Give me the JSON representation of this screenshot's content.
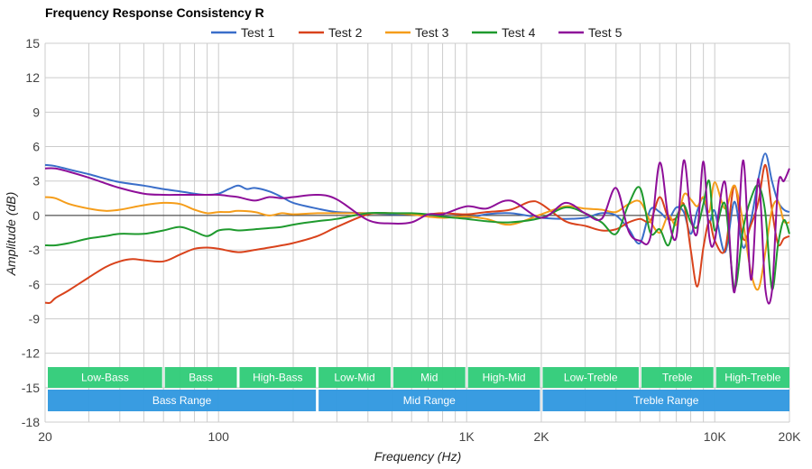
{
  "chart_data": {
    "type": "line",
    "title": "Frequency Response Consistency R",
    "xlabel": "Frequency (Hz)",
    "ylabel": "Amplitude (dB)",
    "xscale": "log",
    "xlim": [
      20,
      20000
    ],
    "ylim": [
      -18,
      15
    ],
    "grid": true,
    "legend_position": "top-center",
    "x_ticks": [
      {
        "value": 20,
        "label": "20"
      },
      {
        "value": 100,
        "label": "100"
      },
      {
        "value": 1000,
        "label": "1K"
      },
      {
        "value": 2000,
        "label": "2K"
      },
      {
        "value": 10000,
        "label": "10K"
      },
      {
        "value": 20000,
        "label": "20K"
      }
    ],
    "y_ticks": [
      15,
      12,
      9,
      6,
      3,
      0,
      -3,
      -6,
      -9,
      -12,
      -15,
      -18
    ],
    "series": [
      {
        "name": "Test 1",
        "color": "#3a6ec9",
        "x": [
          20,
          22,
          25,
          30,
          35,
          40,
          50,
          60,
          70,
          80,
          90,
          100,
          110,
          120,
          130,
          140,
          160,
          180,
          200,
          250,
          300,
          400,
          500,
          600,
          700,
          800,
          1000,
          1200,
          1500,
          2000,
          2500,
          3000,
          3500,
          4000,
          4500,
          5000,
          5500,
          6000,
          6500,
          7000,
          7500,
          8000,
          8500,
          9000,
          9500,
          10000,
          11000,
          12000,
          13000,
          14000,
          15000,
          16000,
          17000,
          18000,
          19000,
          20000
        ],
        "values": [
          4.4,
          4.3,
          4.0,
          3.6,
          3.2,
          2.9,
          2.6,
          2.3,
          2.1,
          1.9,
          1.8,
          1.9,
          2.3,
          2.6,
          2.3,
          2.4,
          2.1,
          1.6,
          1.1,
          0.6,
          0.3,
          0.2,
          0.1,
          0.1,
          0.0,
          -0.1,
          -0.2,
          0.1,
          0.2,
          -0.2,
          -0.3,
          -0.2,
          0.2,
          0.0,
          -1.2,
          -2.4,
          0.5,
          0.3,
          -0.3,
          0.7,
          0.3,
          -1.6,
          0.4,
          1.5,
          -0.6,
          0.4,
          -3.2,
          1.2,
          -2.8,
          -0.4,
          3.2,
          5.4,
          3.0,
          1.2,
          0.5,
          0.3
        ]
      },
      {
        "name": "Test 2",
        "color": "#d9431c",
        "x": [
          20,
          21,
          22,
          25,
          30,
          35,
          40,
          45,
          50,
          60,
          70,
          80,
          90,
          100,
          120,
          140,
          160,
          180,
          200,
          250,
          300,
          400,
          500,
          600,
          700,
          800,
          1000,
          1200,
          1500,
          1800,
          2000,
          2500,
          3000,
          3500,
          4000,
          4500,
          5000,
          5500,
          6000,
          6500,
          7000,
          7500,
          8000,
          8500,
          9000,
          9500,
          10000,
          11000,
          12000,
          13000,
          14000,
          15000,
          16000,
          17000,
          18000,
          19000,
          20000
        ],
        "values": [
          -7.6,
          -7.6,
          -7.2,
          -6.5,
          -5.4,
          -4.5,
          -4.0,
          -3.8,
          -3.9,
          -4.0,
          -3.4,
          -2.9,
          -2.8,
          -2.9,
          -3.2,
          -3.0,
          -2.8,
          -2.6,
          -2.4,
          -1.8,
          -1.0,
          0.1,
          0.2,
          0.1,
          0.1,
          0.2,
          0.1,
          0.3,
          0.5,
          1.2,
          1.0,
          -0.5,
          -0.9,
          -1.3,
          -1.2,
          -0.6,
          -0.3,
          -0.5,
          1.6,
          -0.2,
          -0.2,
          1.0,
          -3.0,
          -6.2,
          -2.8,
          -0.5,
          -2.2,
          -3.0,
          2.6,
          -2.0,
          -0.8,
          1.2,
          4.4,
          0.5,
          -2.5,
          -2.0,
          -1.8
        ]
      },
      {
        "name": "Test 3",
        "color": "#f59d1a",
        "x": [
          20,
          22,
          25,
          30,
          35,
          40,
          50,
          60,
          70,
          80,
          90,
          100,
          110,
          120,
          140,
          160,
          180,
          200,
          250,
          300,
          400,
          500,
          600,
          700,
          800,
          1000,
          1200,
          1500,
          2000,
          2500,
          3000,
          3500,
          4000,
          4500,
          5000,
          5500,
          6000,
          6500,
          7000,
          7500,
          8000,
          8500,
          9000,
          9500,
          10000,
          11000,
          12000,
          13000,
          14000,
          15000,
          16000,
          17000,
          18000,
          19000,
          20000
        ],
        "values": [
          1.6,
          1.5,
          1.0,
          0.6,
          0.4,
          0.5,
          0.9,
          1.1,
          1.0,
          0.5,
          0.2,
          0.3,
          0.3,
          0.4,
          0.3,
          0.0,
          0.2,
          0.1,
          0.2,
          0.2,
          0.2,
          0.2,
          0.1,
          -0.1,
          -0.2,
          -0.1,
          -0.3,
          -0.8,
          0.1,
          0.8,
          0.6,
          0.5,
          0.3,
          1.0,
          1.2,
          -0.5,
          -1.5,
          0.0,
          -0.8,
          1.8,
          1.4,
          0.8,
          1.6,
          0.3,
          2.9,
          0.6,
          2.6,
          -0.6,
          -5.0,
          -6.4,
          -3.2,
          0.5,
          1.2,
          -0.5,
          -0.6
        ]
      },
      {
        "name": "Test 4",
        "color": "#1f9a2e",
        "x": [
          20,
          22,
          25,
          30,
          35,
          40,
          50,
          60,
          70,
          80,
          90,
          100,
          110,
          120,
          140,
          160,
          180,
          200,
          250,
          300,
          400,
          500,
          600,
          700,
          800,
          1000,
          1200,
          1500,
          2000,
          2500,
          3000,
          3500,
          4000,
          4500,
          5000,
          5500,
          6000,
          6500,
          7000,
          7500,
          8000,
          8500,
          9000,
          9500,
          10000,
          11000,
          12000,
          13000,
          14000,
          15000,
          16000,
          17000,
          18000,
          19000,
          20000
        ],
        "values": [
          -2.6,
          -2.6,
          -2.4,
          -2.0,
          -1.8,
          -1.6,
          -1.6,
          -1.3,
          -1.0,
          -1.4,
          -1.8,
          -1.3,
          -1.2,
          -1.3,
          -1.2,
          -1.1,
          -1.0,
          -0.8,
          -0.5,
          -0.3,
          0.2,
          0.2,
          0.2,
          0.1,
          -0.1,
          -0.3,
          -0.5,
          -0.6,
          -0.2,
          0.7,
          0.2,
          -0.6,
          -1.6,
          1.0,
          2.4,
          -1.5,
          -1.2,
          -2.6,
          -0.2,
          0.9,
          -0.6,
          -1.0,
          1.0,
          3.0,
          -1.3,
          1.0,
          -6.3,
          -1.2,
          1.5,
          2.6,
          0.2,
          -6.4,
          -2.5,
          -0.4,
          -1.6
        ]
      },
      {
        "name": "Test 5",
        "color": "#8e0f99",
        "x": [
          20,
          22,
          25,
          30,
          35,
          40,
          50,
          60,
          70,
          80,
          90,
          100,
          110,
          120,
          140,
          160,
          180,
          200,
          250,
          300,
          400,
          500,
          600,
          700,
          800,
          1000,
          1200,
          1500,
          2000,
          2500,
          3000,
          3500,
          4000,
          4500,
          5000,
          5500,
          6000,
          6500,
          7000,
          7500,
          8000,
          8500,
          9000,
          9500,
          10000,
          11000,
          12000,
          13000,
          14000,
          15000,
          16000,
          17000,
          18000,
          19000,
          20000
        ],
        "values": [
          4.1,
          4.1,
          3.8,
          3.3,
          2.8,
          2.4,
          1.9,
          1.8,
          1.8,
          1.8,
          1.8,
          1.8,
          1.7,
          1.6,
          1.3,
          1.6,
          1.5,
          1.6,
          1.8,
          1.4,
          -0.4,
          -0.7,
          -0.6,
          0.1,
          0.1,
          0.8,
          0.6,
          1.3,
          -0.2,
          1.1,
          0.2,
          -0.3,
          2.4,
          -1.4,
          -2.2,
          -1.9,
          4.6,
          -0.2,
          -1.9,
          4.8,
          0.0,
          -1.5,
          4.7,
          -1.8,
          -2.2,
          2.9,
          -6.7,
          4.8,
          -5.6,
          3.2,
          -6.4,
          -6.6,
          2.6,
          3.0,
          4.1
        ]
      }
    ],
    "bands": {
      "row1": [
        {
          "label": "Low-Bass",
          "from": 20,
          "to": 60
        },
        {
          "label": "Bass",
          "from": 60,
          "to": 120
        },
        {
          "label": "High-Bass",
          "from": 120,
          "to": 250
        },
        {
          "label": "Low-Mid",
          "from": 250,
          "to": 500
        },
        {
          "label": "Mid",
          "from": 500,
          "to": 1000
        },
        {
          "label": "High-Mid",
          "from": 1000,
          "to": 2000
        },
        {
          "label": "Low-Treble",
          "from": 2000,
          "to": 5000
        },
        {
          "label": "Treble",
          "from": 5000,
          "to": 10000
        },
        {
          "label": "High-Treble",
          "from": 10000,
          "to": 20000
        }
      ],
      "row2": [
        {
          "label": "Bass Range",
          "from": 20,
          "to": 250
        },
        {
          "label": "Mid Range",
          "from": 250,
          "to": 2000
        },
        {
          "label": "Treble Range",
          "from": 2000,
          "to": 20000
        }
      ],
      "row1_color": "#33cc7a",
      "row2_color": "#3399e0"
    }
  }
}
